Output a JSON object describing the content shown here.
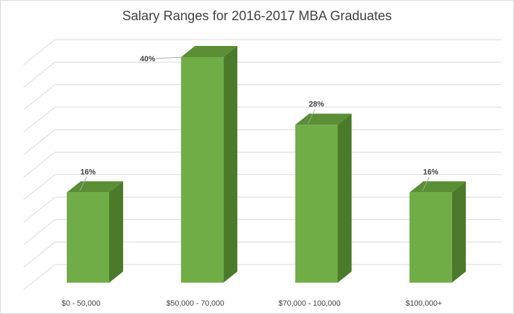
{
  "chart_data": {
    "type": "bar",
    "title": "Salary Ranges for 2016-2017 MBA Graduates",
    "categories": [
      "$0 - 50,000",
      "$50,000 - 70,000",
      "$70,000 - 100,000",
      "$100,000+"
    ],
    "values": [
      16,
      40,
      28,
      16
    ],
    "data_labels": [
      "16%",
      "40%",
      "28%",
      "16%"
    ],
    "unit": "%",
    "ylim": [
      0,
      45
    ],
    "grid": true,
    "three_d": true,
    "colors": {
      "bar_front": "#70ad47",
      "bar_side": "#4a7a2a",
      "bar_top": "#5a8f35",
      "gridline": "#d9d9d9",
      "text": "#404040"
    }
  }
}
